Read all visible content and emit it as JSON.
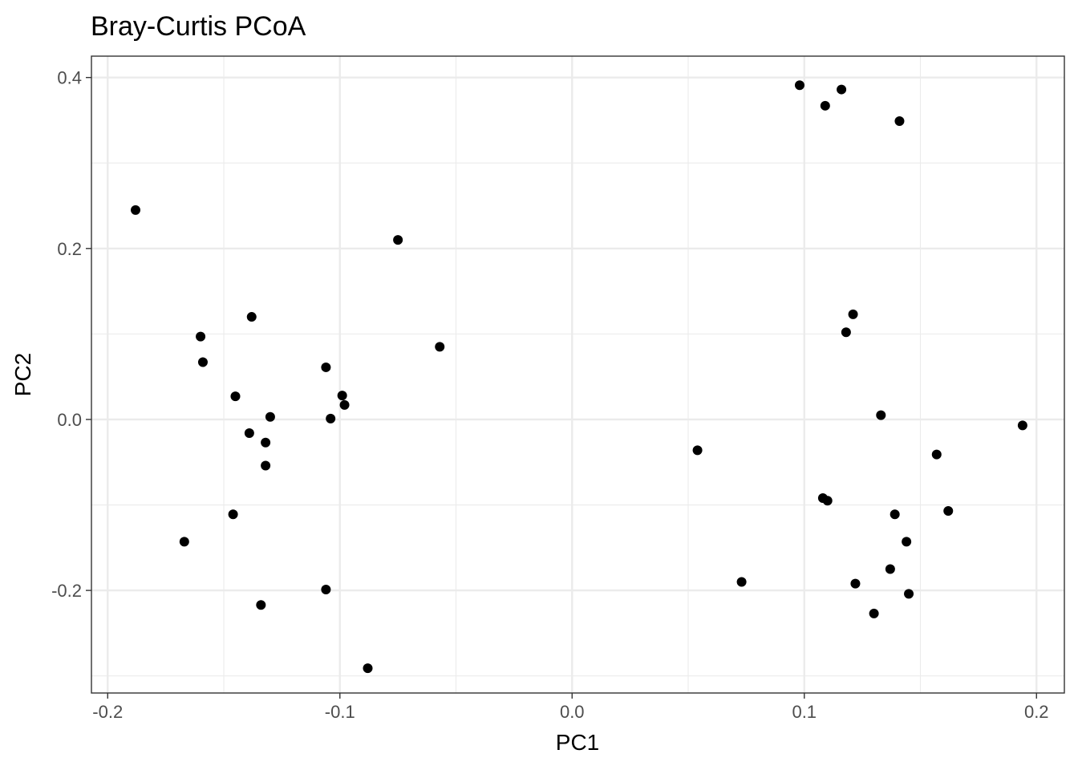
{
  "chart_data": {
    "type": "scatter",
    "title": "Bray-Curtis PCoA",
    "xlabel": "PC1",
    "ylabel": "PC2",
    "xlim": [
      -0.207,
      0.212
    ],
    "ylim": [
      -0.32,
      0.425
    ],
    "x_ticks": [
      {
        "value": -0.2,
        "label": "-0.2"
      },
      {
        "value": -0.1,
        "label": "-0.1"
      },
      {
        "value": 0.0,
        "label": "0.0"
      },
      {
        "value": 0.1,
        "label": "0.1"
      },
      {
        "value": 0.2,
        "label": "0.2"
      }
    ],
    "y_ticks": [
      {
        "value": -0.2,
        "label": "-0.2"
      },
      {
        "value": 0.0,
        "label": "0.0"
      },
      {
        "value": 0.2,
        "label": "0.2"
      },
      {
        "value": 0.4,
        "label": "0.4"
      }
    ],
    "x_minor_ticks": [
      -0.15,
      -0.05,
      0.05,
      0.15
    ],
    "y_minor_ticks": [
      -0.3,
      -0.1,
      0.1,
      0.3
    ],
    "grid": true,
    "point_color": "#000000",
    "points": [
      {
        "x": -0.188,
        "y": 0.245
      },
      {
        "x": -0.16,
        "y": 0.097
      },
      {
        "x": -0.159,
        "y": 0.067
      },
      {
        "x": -0.167,
        "y": -0.143
      },
      {
        "x": -0.145,
        "y": 0.027
      },
      {
        "x": -0.146,
        "y": -0.111
      },
      {
        "x": -0.138,
        "y": 0.12
      },
      {
        "x": -0.139,
        "y": -0.016
      },
      {
        "x": -0.13,
        "y": 0.003
      },
      {
        "x": -0.132,
        "y": -0.027
      },
      {
        "x": -0.132,
        "y": -0.054
      },
      {
        "x": -0.134,
        "y": -0.217
      },
      {
        "x": -0.106,
        "y": 0.061
      },
      {
        "x": -0.104,
        "y": 0.001
      },
      {
        "x": -0.099,
        "y": 0.028
      },
      {
        "x": -0.098,
        "y": 0.017
      },
      {
        "x": -0.106,
        "y": -0.199
      },
      {
        "x": -0.088,
        "y": -0.291
      },
      {
        "x": -0.075,
        "y": 0.21
      },
      {
        "x": -0.057,
        "y": 0.085
      },
      {
        "x": 0.054,
        "y": -0.036
      },
      {
        "x": 0.073,
        "y": -0.19
      },
      {
        "x": 0.098,
        "y": 0.391
      },
      {
        "x": 0.109,
        "y": 0.367
      },
      {
        "x": 0.116,
        "y": 0.386
      },
      {
        "x": 0.141,
        "y": 0.349
      },
      {
        "x": 0.121,
        "y": 0.123
      },
      {
        "x": 0.118,
        "y": 0.102
      },
      {
        "x": 0.133,
        "y": 0.005
      },
      {
        "x": 0.108,
        "y": -0.092
      },
      {
        "x": 0.11,
        "y": -0.095
      },
      {
        "x": 0.139,
        "y": -0.111
      },
      {
        "x": 0.157,
        "y": -0.041
      },
      {
        "x": 0.162,
        "y": -0.107
      },
      {
        "x": 0.144,
        "y": -0.143
      },
      {
        "x": 0.137,
        "y": -0.175
      },
      {
        "x": 0.122,
        "y": -0.192
      },
      {
        "x": 0.145,
        "y": -0.204
      },
      {
        "x": 0.13,
        "y": -0.227
      },
      {
        "x": 0.194,
        "y": -0.007
      }
    ]
  }
}
